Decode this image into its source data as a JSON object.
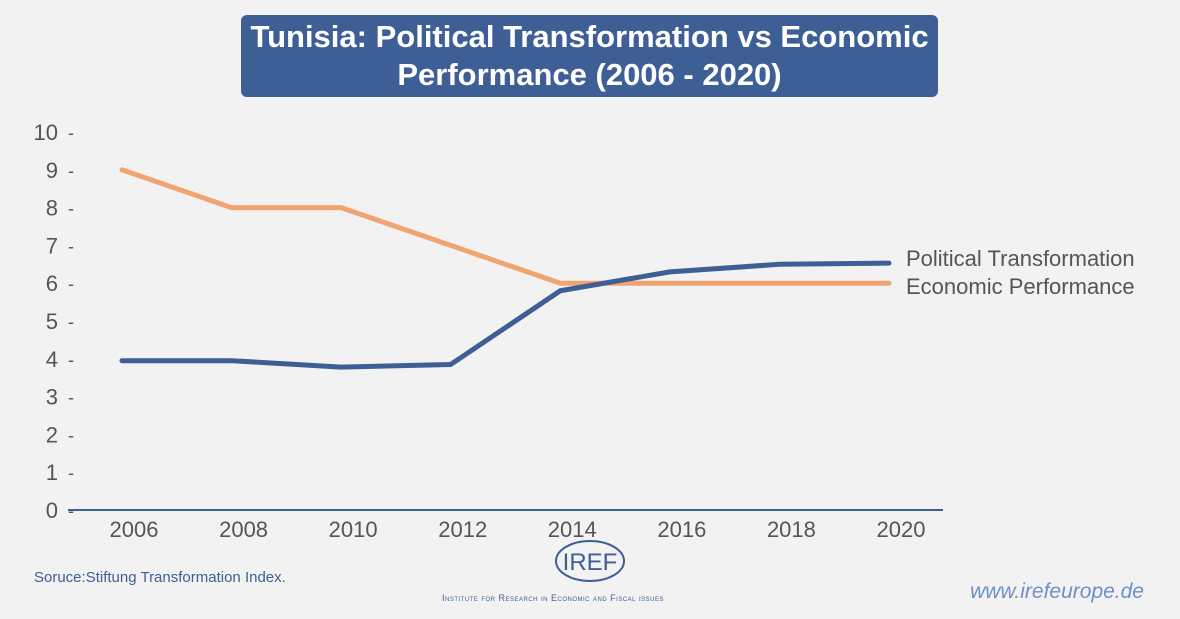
{
  "chart_data": {
    "type": "line",
    "title": "Tunisia: Political Transformation vs Economic Performance (2006 - 2020)",
    "x": [
      "2006",
      "2008",
      "2010",
      "2012",
      "2014",
      "2016",
      "2018",
      "2020"
    ],
    "yticks": [
      "0",
      "1",
      "2",
      "3",
      "4",
      "5",
      "6",
      "7",
      "8",
      "9",
      "10"
    ],
    "ylim": [
      0,
      10
    ],
    "series": [
      {
        "name": "Political Transformation",
        "color": "#3e5f96",
        "values": [
          3.95,
          3.95,
          3.78,
          3.85,
          5.8,
          6.3,
          6.5,
          6.53
        ]
      },
      {
        "name": "Economic Performance",
        "color": "#f0a571",
        "values": [
          9,
          8,
          8,
          7,
          6,
          6,
          6,
          6
        ]
      }
    ],
    "legend": "right, inline labels"
  },
  "footer": {
    "source": "Soruce:Stiftung Transformation Index.",
    "logo_text": "IREF",
    "institute": "Institute for Research in Economic and Fiscal issues",
    "url": "www.irefeurope.de"
  }
}
